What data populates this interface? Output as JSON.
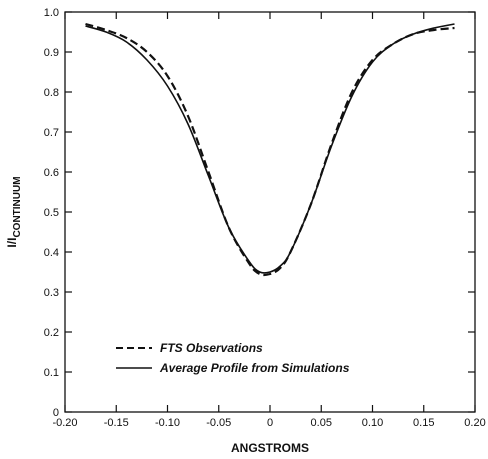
{
  "chart_data": {
    "type": "line",
    "xlabel": "ANGSTROMS",
    "ylabel_main": "I/I",
    "ylabel_sub": "CONTINUUM",
    "xlim": [
      -0.2,
      0.2
    ],
    "ylim": [
      0,
      1.0
    ],
    "x_ticks": [
      -0.2,
      -0.15,
      -0.1,
      -0.05,
      0,
      0.05,
      0.1,
      0.15,
      0.2
    ],
    "x_tick_labels": [
      "-0.20",
      "-0.15",
      "-0.10",
      "-0.05",
      "0",
      "0.05",
      "0.10",
      "0.15",
      "0.20"
    ],
    "y_ticks": [
      0,
      0.1,
      0.2,
      0.3,
      0.4,
      0.5,
      0.6,
      0.7,
      0.8,
      0.9,
      1.0
    ],
    "y_tick_labels": [
      "0",
      "0.1",
      "0.2",
      "0.3",
      "0.4",
      "0.5",
      "0.6",
      "0.7",
      "0.8",
      "0.9",
      "1.0"
    ],
    "grid": false,
    "legend_position": "bottom-left",
    "series": [
      {
        "name": "FTS Observations",
        "style": "dashed",
        "x": [
          -0.18,
          -0.16,
          -0.14,
          -0.12,
          -0.1,
          -0.08,
          -0.06,
          -0.04,
          -0.02,
          -0.01,
          0.0,
          0.01,
          0.02,
          0.04,
          0.06,
          0.08,
          0.1,
          0.12,
          0.14,
          0.16,
          0.18
        ],
        "y": [
          0.97,
          0.955,
          0.935,
          0.9,
          0.84,
          0.74,
          0.6,
          0.46,
          0.37,
          0.345,
          0.345,
          0.36,
          0.4,
          0.52,
          0.67,
          0.8,
          0.88,
          0.92,
          0.945,
          0.955,
          0.96
        ]
      },
      {
        "name": "Average Profile from Simulations",
        "style": "solid",
        "x": [
          -0.18,
          -0.16,
          -0.14,
          -0.12,
          -0.1,
          -0.08,
          -0.06,
          -0.04,
          -0.02,
          -0.01,
          0.0,
          0.01,
          0.02,
          0.04,
          0.06,
          0.08,
          0.1,
          0.12,
          0.14,
          0.16,
          0.18
        ],
        "y": [
          0.965,
          0.95,
          0.925,
          0.88,
          0.815,
          0.72,
          0.59,
          0.46,
          0.375,
          0.35,
          0.35,
          0.365,
          0.4,
          0.52,
          0.665,
          0.79,
          0.875,
          0.92,
          0.945,
          0.96,
          0.97
        ]
      }
    ]
  }
}
